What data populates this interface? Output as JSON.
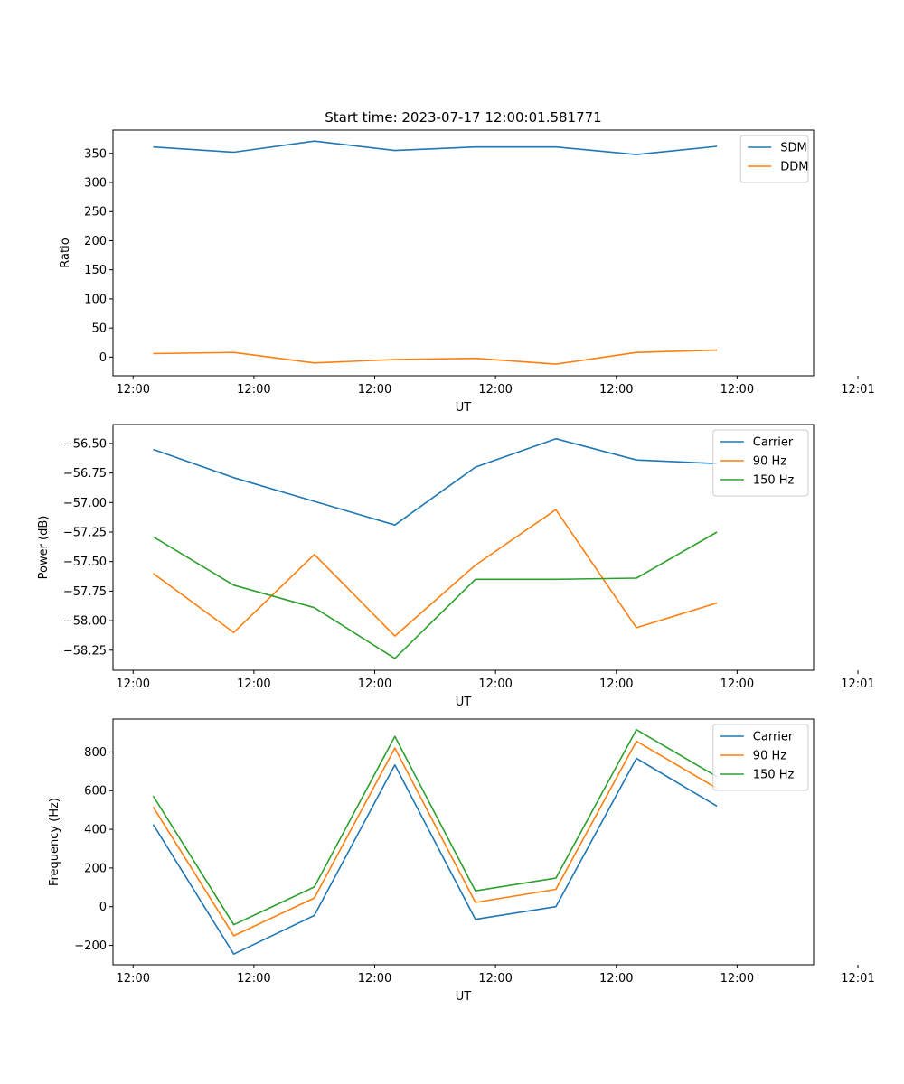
{
  "chart_data": [
    {
      "type": "line",
      "title": "Start time: 2023-07-17 12:00:01.581771",
      "xlabel": "UT",
      "ylabel": "Ratio",
      "x": [
        1,
        2,
        3,
        4,
        5,
        6,
        7,
        8
      ],
      "xlim": [
        0.5,
        9.2
      ],
      "x_ticks": [
        0.75,
        2.25,
        3.75,
        5.25,
        6.75,
        8.25,
        9.75
      ],
      "x_tick_labels": [
        "12:00",
        "12:00",
        "12:00",
        "12:00",
        "12:00",
        "12:00",
        "12:01"
      ],
      "ylim": [
        -32,
        390
      ],
      "y_ticks": [
        0,
        50,
        100,
        150,
        200,
        250,
        300,
        350
      ],
      "y_tick_labels": [
        "0",
        "50",
        "100",
        "150",
        "200",
        "250",
        "300",
        "350"
      ],
      "legend_position": "top-right",
      "series": [
        {
          "name": "SDM",
          "color": "#1f77b4",
          "values": [
            361,
            352,
            371,
            355,
            361,
            361,
            348,
            362
          ]
        },
        {
          "name": "DDM",
          "color": "#ff7f0e",
          "values": [
            6,
            8,
            -10,
            -4,
            -2,
            -12,
            8,
            12
          ]
        }
      ]
    },
    {
      "type": "line",
      "title": "",
      "xlabel": "UT",
      "ylabel": "Power (dB)",
      "x": [
        1,
        2,
        3,
        4,
        5,
        6,
        7,
        8
      ],
      "xlim": [
        0.5,
        9.2
      ],
      "x_ticks": [
        0.75,
        2.25,
        3.75,
        5.25,
        6.75,
        8.25,
        9.75
      ],
      "x_tick_labels": [
        "12:00",
        "12:00",
        "12:00",
        "12:00",
        "12:00",
        "12:00",
        "12:01"
      ],
      "ylim": [
        -58.42,
        -56.34
      ],
      "y_ticks": [
        -58.25,
        -58.0,
        -57.75,
        -57.5,
        -57.25,
        -57.0,
        -56.75,
        -56.5
      ],
      "y_tick_labels": [
        "−58.25",
        "−58.00",
        "−57.75",
        "−57.50",
        "−57.25",
        "−57.00",
        "−56.75",
        "−56.50"
      ],
      "legend_position": "top-right",
      "series": [
        {
          "name": "Carrier",
          "color": "#1f77b4",
          "values": [
            -56.55,
            -56.79,
            -56.99,
            -57.19,
            -56.7,
            -56.46,
            -56.64,
            -56.67
          ]
        },
        {
          "name": "90 Hz",
          "color": "#ff7f0e",
          "values": [
            -57.6,
            -58.1,
            -57.44,
            -58.13,
            -57.53,
            -57.06,
            -58.06,
            -57.85
          ]
        },
        {
          "name": "150 Hz",
          "color": "#2ca02c",
          "values": [
            -57.29,
            -57.7,
            -57.89,
            -58.32,
            -57.65,
            -57.65,
            -57.64,
            -57.25
          ]
        }
      ]
    },
    {
      "type": "line",
      "title": "",
      "xlabel": "UT",
      "ylabel": "Frequency (Hz)",
      "x": [
        1,
        2,
        3,
        4,
        5,
        6,
        7,
        8
      ],
      "xlim": [
        0.5,
        9.2
      ],
      "x_ticks": [
        0.75,
        2.25,
        3.75,
        5.25,
        6.75,
        8.25,
        9.75
      ],
      "x_tick_labels": [
        "12:00",
        "12:00",
        "12:00",
        "12:00",
        "12:00",
        "12:00",
        "12:01"
      ],
      "ylim": [
        -300,
        970
      ],
      "y_ticks": [
        -200,
        0,
        200,
        400,
        600,
        800
      ],
      "y_tick_labels": [
        "−200",
        "0",
        "200",
        "400",
        "600",
        "800"
      ],
      "legend_position": "top-right",
      "series": [
        {
          "name": "Carrier",
          "color": "#1f77b4",
          "values": [
            425,
            -245,
            -45,
            733,
            -65,
            0,
            767,
            520
          ]
        },
        {
          "name": "90 Hz",
          "color": "#ff7f0e",
          "values": [
            515,
            -150,
            45,
            820,
            22,
            90,
            855,
            612
          ]
        },
        {
          "name": "150 Hz",
          "color": "#2ca02c",
          "values": [
            572,
            -93,
            102,
            880,
            82,
            148,
            915,
            672
          ]
        }
      ]
    }
  ]
}
